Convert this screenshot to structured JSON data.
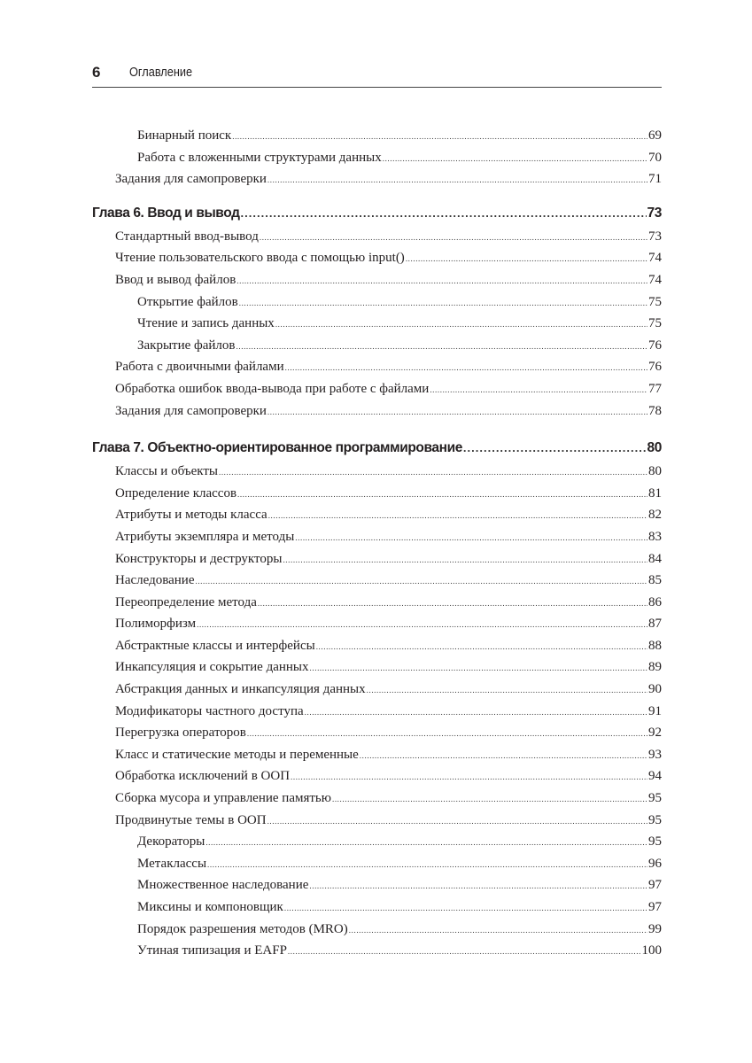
{
  "header": {
    "page_number": "6",
    "title": "Оглавление"
  },
  "toc": [
    {
      "level": 2,
      "title": "Бинарный поиск",
      "page": "69"
    },
    {
      "level": 2,
      "title": "Работа с вложенными структурами данных",
      "page": "70"
    },
    {
      "level": 1,
      "title": "Задания для самопроверки",
      "page": "71"
    },
    {
      "level": 0,
      "title": "Глава 6. Ввод и вывод",
      "page": "73"
    },
    {
      "level": 1,
      "title": "Стандартный ввод-вывод",
      "page": "73"
    },
    {
      "level": 1,
      "title": "Чтение пользовательского ввода с помощью input()",
      "page": "74"
    },
    {
      "level": 1,
      "title": "Ввод и вывод файлов",
      "page": "74"
    },
    {
      "level": 2,
      "title": "Открытие файлов",
      "page": "75"
    },
    {
      "level": 2,
      "title": "Чтение и запись данных",
      "page": "75"
    },
    {
      "level": 2,
      "title": "Закрытие файлов",
      "page": "76"
    },
    {
      "level": 1,
      "title": "Работа с двоичными файлами",
      "page": "76"
    },
    {
      "level": 1,
      "title": "Обработка ошибок ввода-вывода при работе с файлами",
      "page": "77"
    },
    {
      "level": 1,
      "title": "Задания для самопроверки",
      "page": "78"
    },
    {
      "level": 0,
      "title": "Глава 7. Объектно-ориентированное программирование",
      "page": "80"
    },
    {
      "level": 1,
      "title": "Классы и объекты",
      "page": "80"
    },
    {
      "level": 1,
      "title": "Определение классов",
      "page": "81"
    },
    {
      "level": 1,
      "title": "Атрибуты и методы класса",
      "page": "82"
    },
    {
      "level": 1,
      "title": "Атрибуты экземпляра и методы",
      "page": "83"
    },
    {
      "level": 1,
      "title": "Конструкторы и деструкторы",
      "page": "84"
    },
    {
      "level": 1,
      "title": "Наследование",
      "page": "85"
    },
    {
      "level": 1,
      "title": "Переопределение метода",
      "page": "86"
    },
    {
      "level": 1,
      "title": "Полиморфизм",
      "page": "87"
    },
    {
      "level": 1,
      "title": "Абстрактные классы и интерфейсы",
      "page": "88"
    },
    {
      "level": 1,
      "title": "Инкапсуляция и сокрытие данных",
      "page": "89"
    },
    {
      "level": 1,
      "title": "Абстракция данных и инкапсуляция данных",
      "page": "90"
    },
    {
      "level": 1,
      "title": "Модификаторы частного доступа",
      "page": "91"
    },
    {
      "level": 1,
      "title": "Перегрузка операторов",
      "page": "92"
    },
    {
      "level": 1,
      "title": "Класс и статические методы и переменные",
      "page": "93"
    },
    {
      "level": 1,
      "title": "Обработка исключений в ООП",
      "page": "94"
    },
    {
      "level": 1,
      "title": "Сборка мусора и управление памятью",
      "page": "95"
    },
    {
      "level": 1,
      "title": "Продвинутые темы в ООП",
      "page": "95"
    },
    {
      "level": 2,
      "title": "Декораторы",
      "page": "95"
    },
    {
      "level": 2,
      "title": "Метаклассы",
      "page": "96"
    },
    {
      "level": 2,
      "title": "Множественное наследование",
      "page": "97"
    },
    {
      "level": 2,
      "title": "Миксины и компоновщик",
      "page": "97"
    },
    {
      "level": 2,
      "title": "Порядок разрешения методов (MRO)",
      "page": "99"
    },
    {
      "level": 2,
      "title": "Утиная типизация и EAFP",
      "page": "100"
    }
  ]
}
